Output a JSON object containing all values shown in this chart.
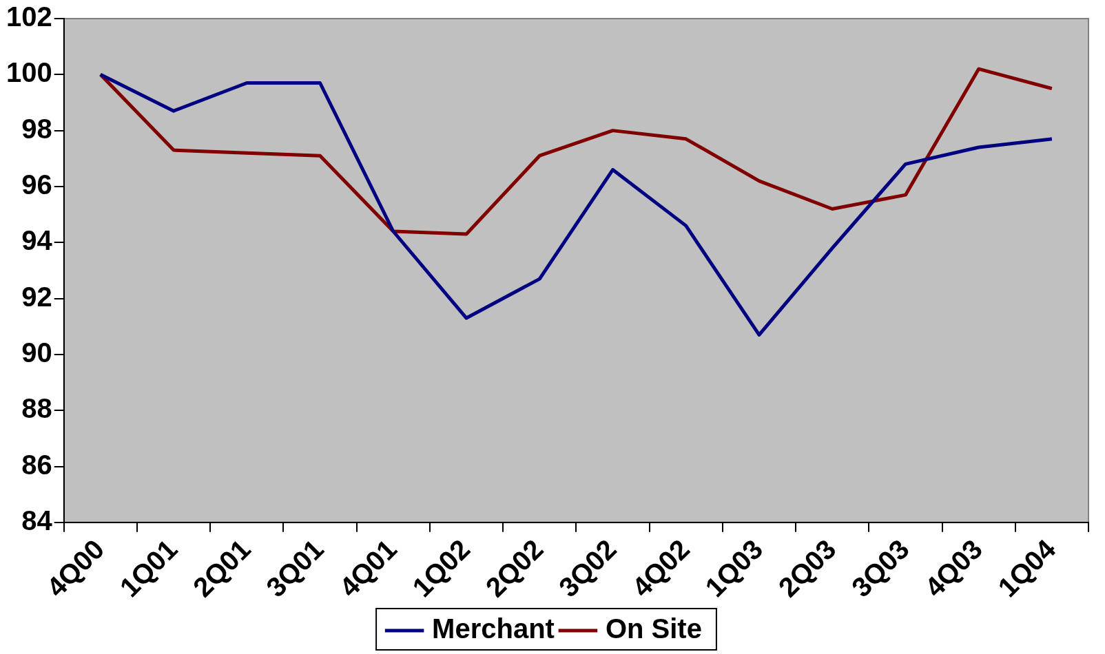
{
  "chart_data": {
    "type": "line",
    "categories": [
      "4Q00",
      "1Q01",
      "2Q01",
      "3Q01",
      "4Q01",
      "1Q02",
      "2Q02",
      "3Q02",
      "4Q02",
      "1Q03",
      "2Q03",
      "3Q03",
      "4Q03",
      "1Q04"
    ],
    "series": [
      {
        "name": "Merchant",
        "color": "#000080",
        "values": [
          100,
          98.7,
          99.7,
          99.7,
          94.4,
          91.3,
          92.7,
          96.6,
          94.6,
          90.7,
          93.8,
          96.8,
          97.4,
          97.7
        ]
      },
      {
        "name": "On Site",
        "color": "#800000",
        "values": [
          100,
          97.3,
          97.2,
          97.1,
          94.4,
          94.3,
          97.1,
          98.0,
          97.7,
          96.2,
          95.2,
          95.7,
          100.2,
          99.5
        ]
      }
    ],
    "ylim": [
      84,
      102
    ],
    "yticks": [
      84,
      86,
      88,
      90,
      92,
      94,
      96,
      98,
      100,
      102
    ],
    "grid": false,
    "legend": "bottom",
    "marker": "none",
    "line_style": "solid"
  }
}
